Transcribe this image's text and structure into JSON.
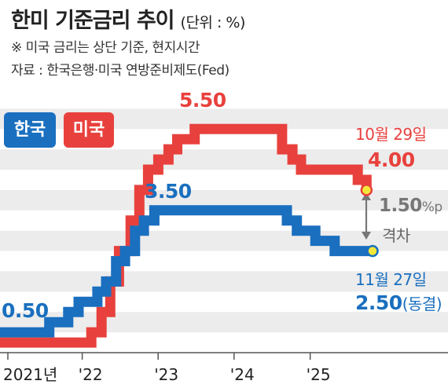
{
  "header": {
    "title": "한미 기준금리 추이",
    "unit": "(단위 : %)",
    "note": "※ 미국 금리는 상단 기준, 현지시간",
    "source": "자료 : 한국은행·미국 연방준비제도(Fed)"
  },
  "colors": {
    "korea": "#1a6fbf",
    "us": "#e8413d",
    "background_band": "#ececec",
    "marker_fill": "#f3e83a"
  },
  "chart_data": {
    "type": "line",
    "step": true,
    "title": "한미 기준금리 추이",
    "unit": "%",
    "ylim": [
      0,
      6.2
    ],
    "x_ticks": [
      "2021년",
      "'22",
      "'23",
      "'24",
      "'25"
    ],
    "series": [
      {
        "name": "한국",
        "color": "#1a6fbf",
        "points": [
          [
            "2021-01-01",
            0.5
          ],
          [
            "2021-08-26",
            0.75
          ],
          [
            "2021-11-25",
            1.0
          ],
          [
            "2022-01-14",
            1.25
          ],
          [
            "2022-04-14",
            1.5
          ],
          [
            "2022-05-26",
            1.75
          ],
          [
            "2022-07-13",
            2.25
          ],
          [
            "2022-08-25",
            2.5
          ],
          [
            "2022-10-12",
            3.0
          ],
          [
            "2022-11-24",
            3.25
          ],
          [
            "2023-01-13",
            3.5
          ],
          [
            "2024-10-11",
            3.25
          ],
          [
            "2024-11-28",
            3.0
          ],
          [
            "2025-02-25",
            2.75
          ],
          [
            "2025-05-29",
            2.5
          ],
          [
            "2025-11-27",
            2.5
          ]
        ]
      },
      {
        "name": "미국",
        "color": "#e8413d",
        "points": [
          [
            "2021-01-01",
            0.25
          ],
          [
            "2022-03-16",
            0.5
          ],
          [
            "2022-05-04",
            1.0
          ],
          [
            "2022-06-15",
            1.75
          ],
          [
            "2022-07-27",
            2.5
          ],
          [
            "2022-09-21",
            3.25
          ],
          [
            "2022-11-02",
            4.0
          ],
          [
            "2022-12-14",
            4.5
          ],
          [
            "2023-02-01",
            4.75
          ],
          [
            "2023-03-22",
            5.0
          ],
          [
            "2023-05-03",
            5.25
          ],
          [
            "2023-07-26",
            5.5
          ],
          [
            "2024-09-18",
            5.0
          ],
          [
            "2024-11-07",
            4.75
          ],
          [
            "2024-12-18",
            4.5
          ],
          [
            "2025-09-17",
            4.25
          ],
          [
            "2025-10-29",
            4.0
          ]
        ]
      }
    ],
    "annotations": {
      "korea_start": "0.50",
      "us_peak": "5.50",
      "korea_peak": "3.50",
      "us_latest_date": "10월 29일",
      "us_latest_value": "4.00",
      "gap_value": "1.50",
      "gap_unit": "%p",
      "gap_label": "격차",
      "korea_latest_date": "11월 27일",
      "korea_latest_value": "2.50",
      "korea_latest_note": "(동결)"
    }
  },
  "legend": [
    {
      "label": "한국",
      "color": "#1a6fbf"
    },
    {
      "label": "미국",
      "color": "#e8413d"
    }
  ]
}
